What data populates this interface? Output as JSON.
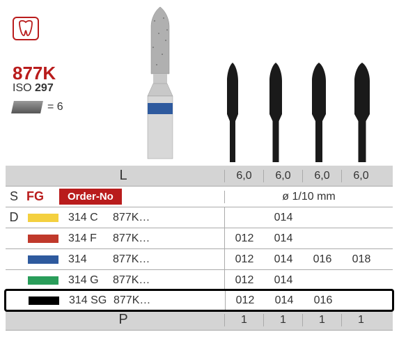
{
  "product": {
    "code": "877K",
    "iso_prefix": "ISO",
    "iso_number": "297",
    "pack_qty": "= 6"
  },
  "headers": {
    "L": "L",
    "S": "S",
    "FG": "FG",
    "order_no": "Order-No",
    "diam": "ø 1/10 mm",
    "D": "D",
    "P": "P"
  },
  "sizes_header": [
    "6,0",
    "6,0",
    "6,0",
    "6,0"
  ],
  "colors": {
    "yellow": "#f4d03f",
    "red": "#c0392b",
    "blue": "#2e5a9e",
    "green": "#2a9d5a",
    "black": "#000000"
  },
  "rows": [
    {
      "swatch": "yellow",
      "code1": "314 C",
      "code2": "877K…",
      "vals": [
        "",
        "014",
        "",
        ""
      ]
    },
    {
      "swatch": "red",
      "code1": "314 F",
      "code2": "877K…",
      "vals": [
        "012",
        "014",
        "",
        ""
      ]
    },
    {
      "swatch": "blue",
      "code1": "314",
      "code2": "877K…",
      "vals": [
        "012",
        "014",
        "016",
        "018"
      ]
    },
    {
      "swatch": "green",
      "code1": "314 G",
      "code2": "877K…",
      "vals": [
        "012",
        "014",
        "",
        ""
      ]
    },
    {
      "swatch": "black",
      "code1": "314 SG",
      "code2": "877K…",
      "vals": [
        "012",
        "014",
        "016",
        ""
      ],
      "highlight": true
    }
  ],
  "p_row": [
    "1",
    "1",
    "1",
    "1"
  ],
  "bur_shapes": {
    "silhouette_color": "#1a1a1a",
    "silhouette_widths": [
      16,
      18,
      20,
      22
    ]
  }
}
